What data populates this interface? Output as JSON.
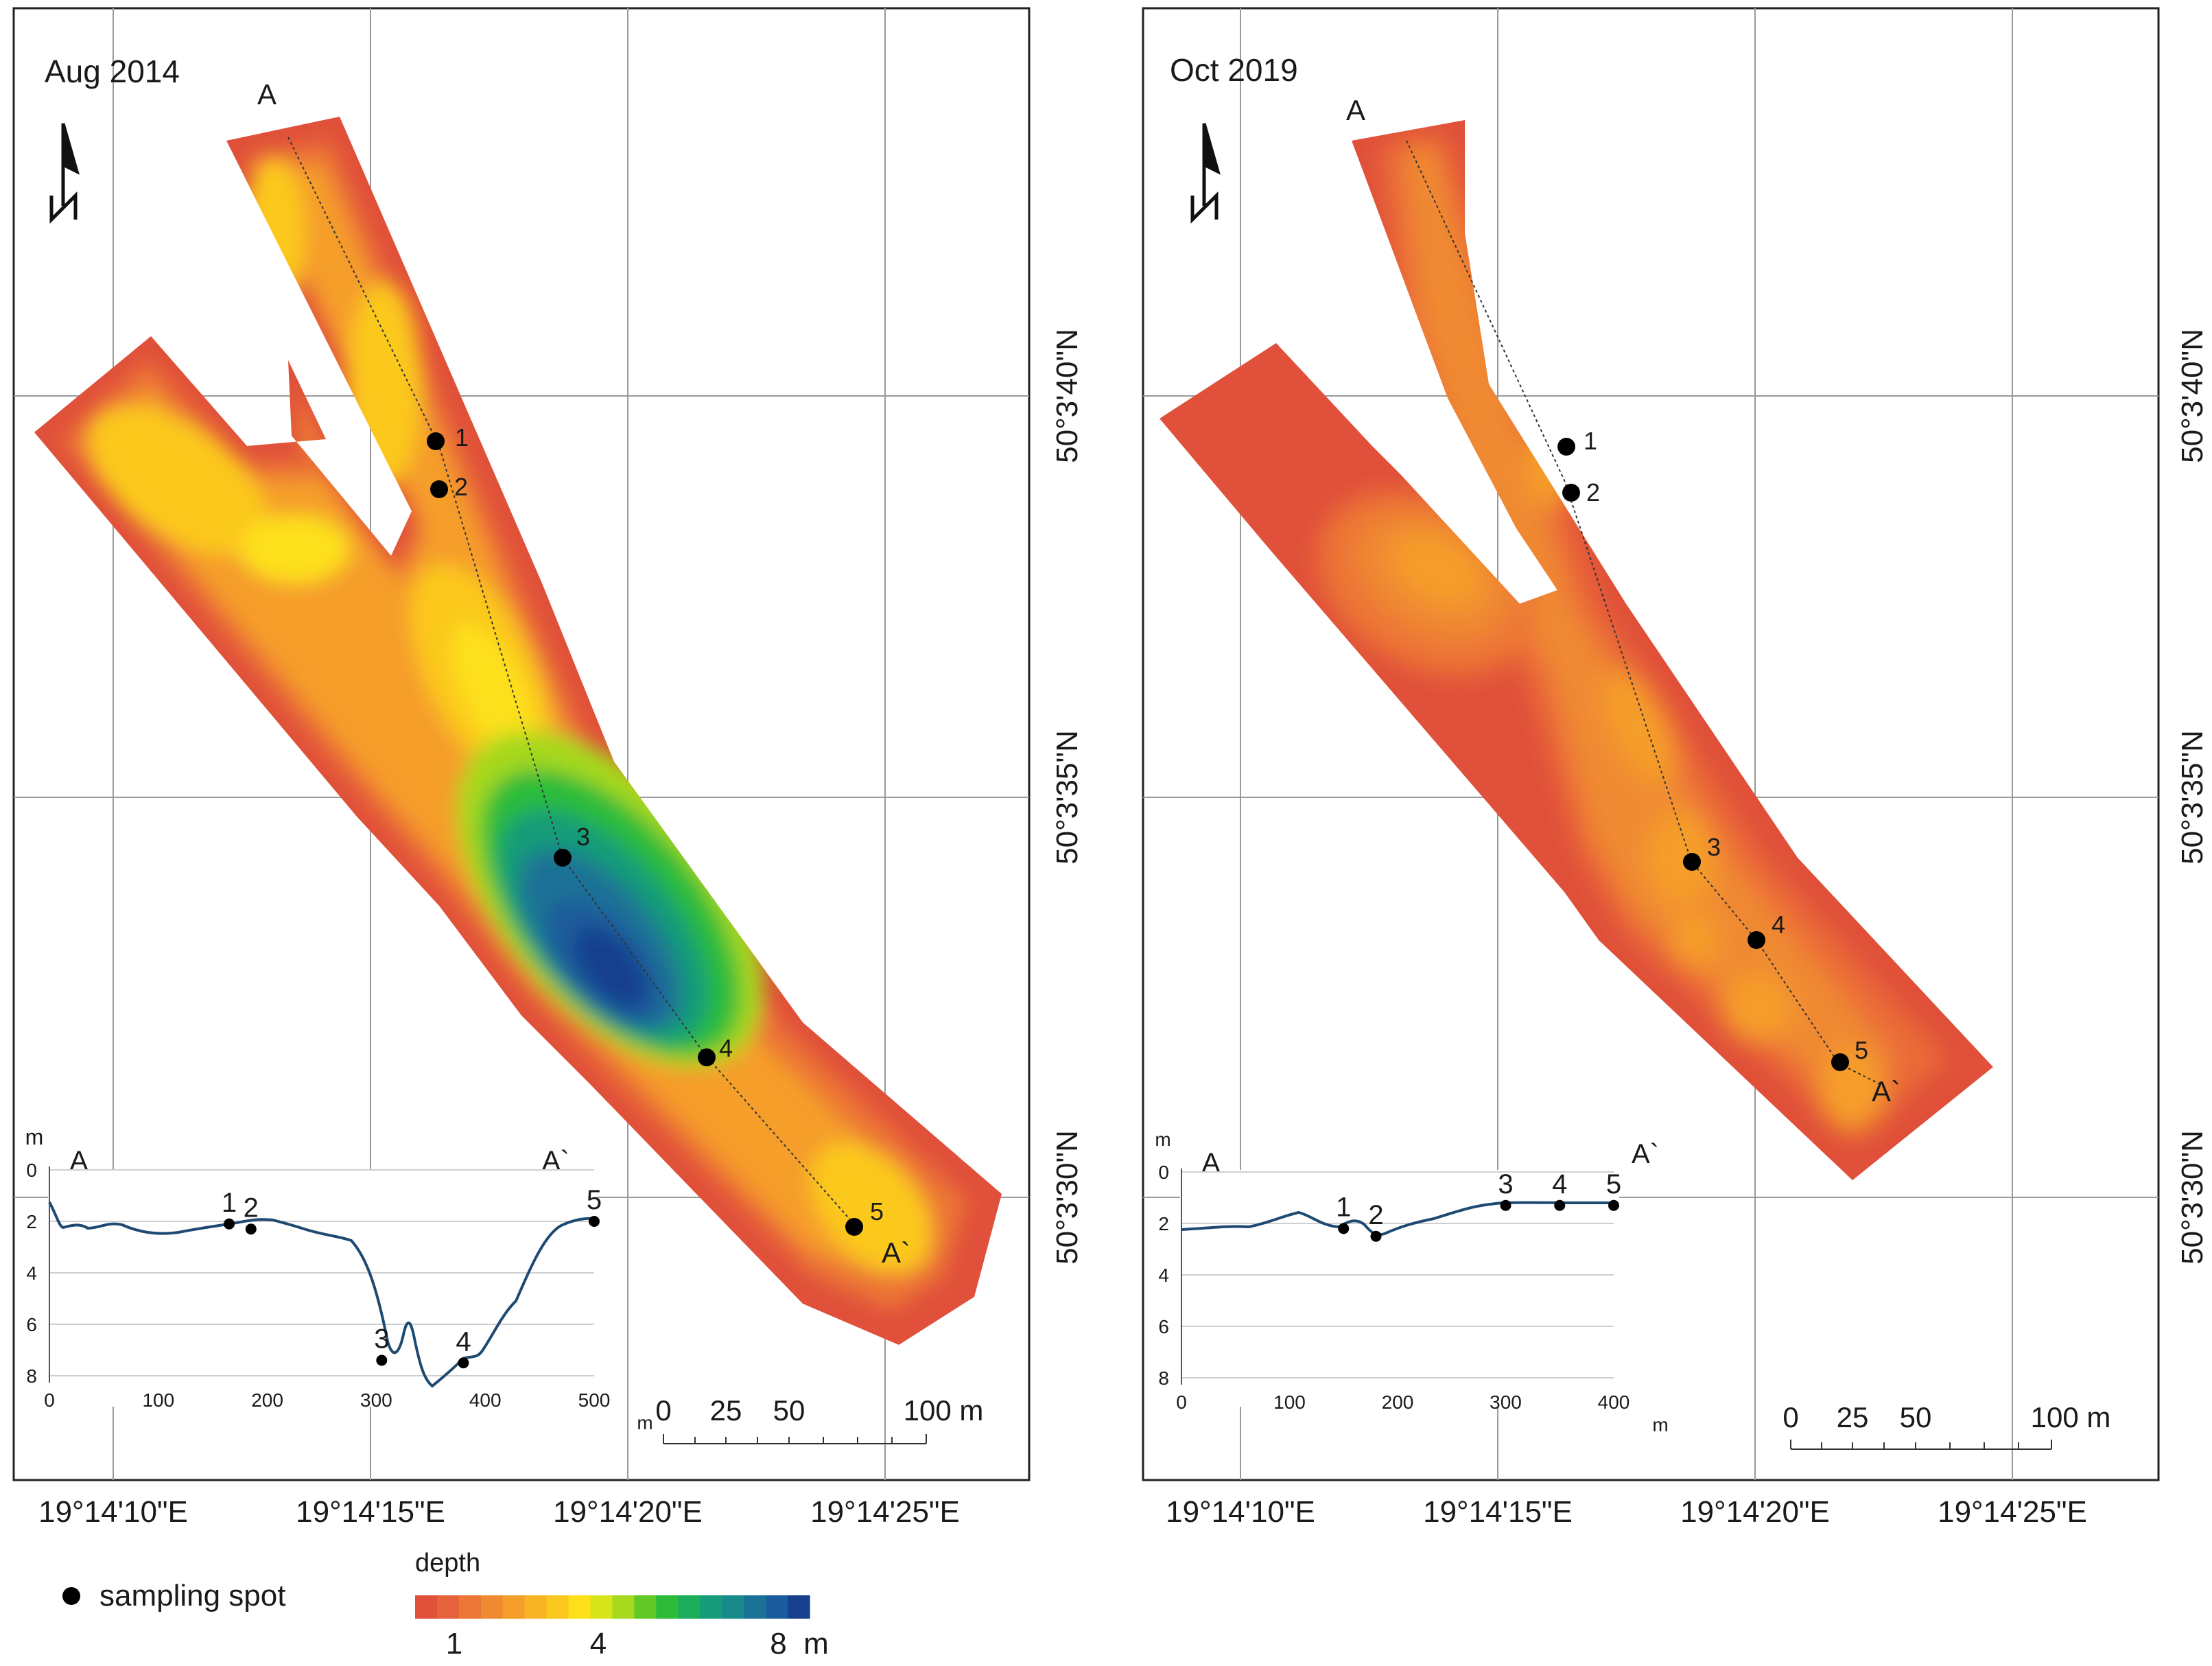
{
  "panels": [
    {
      "id": "left",
      "title": "Aug 2014",
      "section_start": "A",
      "section_end": "A`",
      "lat_labels": [
        "50°3'40\"N",
        "50°3'35\"N",
        "50°3'30\"N"
      ],
      "lon_labels": [
        "19°14'10\"E",
        "19°14'15\"E",
        "19°14'20\"E",
        "19°14'25\"E"
      ],
      "scale_labels": [
        "0",
        "25",
        "50",
        "100 m"
      ],
      "sampling_points": [
        "1",
        "2",
        "3",
        "4",
        "5"
      ],
      "profile": {
        "y_unit": "m",
        "x_unit": "m",
        "y_ticks": [
          "0",
          "2",
          "4",
          "6",
          "8"
        ],
        "x_ticks": [
          "0",
          "100",
          "200",
          "300",
          "400",
          "500"
        ],
        "start_label": "A",
        "end_label": "A`",
        "points": [
          {
            "label": "1",
            "x": 165,
            "y": 2.1
          },
          {
            "label": "2",
            "x": 185,
            "y": 2.3
          },
          {
            "label": "3",
            "x": 305,
            "y": 7.4
          },
          {
            "label": "4",
            "x": 380,
            "y": 7.5
          },
          {
            "label": "5",
            "x": 500,
            "y": 2.0
          }
        ]
      }
    },
    {
      "id": "right",
      "title": "Oct 2019",
      "section_start": "A",
      "section_end": "A`",
      "lat_labels": [
        "50°3'40\"N",
        "50°3'35\"N",
        "50°3'30\"N"
      ],
      "lon_labels": [
        "19°14'10\"E",
        "19°14'15\"E",
        "19°14'20\"E",
        "19°14'25\"E"
      ],
      "scale_labels": [
        "0",
        "25",
        "50",
        "100 m"
      ],
      "sampling_points": [
        "1",
        "2",
        "3",
        "4",
        "5"
      ],
      "profile": {
        "y_unit": "m",
        "x_unit": "m",
        "y_ticks": [
          "0",
          "2",
          "4",
          "6",
          "8"
        ],
        "x_ticks": [
          "0",
          "100",
          "200",
          "300",
          "400"
        ],
        "start_label": "A",
        "end_label": "A`",
        "points": [
          {
            "label": "1",
            "x": 150,
            "y": 2.2
          },
          {
            "label": "2",
            "x": 180,
            "y": 2.5
          },
          {
            "label": "3",
            "x": 300,
            "y": 1.3
          },
          {
            "label": "4",
            "x": 350,
            "y": 1.3
          },
          {
            "label": "5",
            "x": 400,
            "y": 1.3
          }
        ]
      }
    }
  ],
  "legend": {
    "sampling_label": "sampling spot",
    "depth_title": "depth",
    "depth_ticks": [
      "1",
      "4",
      "8  m"
    ],
    "depth_colors": [
      "#e0503a",
      "#e6623a",
      "#ec7636",
      "#f08a30",
      "#f59e2a",
      "#f9b424",
      "#fbc81e",
      "#fde01a",
      "#d8e41a",
      "#a6d81e",
      "#62c828",
      "#2cbc3a",
      "#1aae5a",
      "#169c78",
      "#188a8c",
      "#1a7296",
      "#1a5c9c",
      "#163f8e"
    ]
  },
  "colors": {
    "shore": "#e0503a",
    "profile_line": "#1e4a72"
  }
}
